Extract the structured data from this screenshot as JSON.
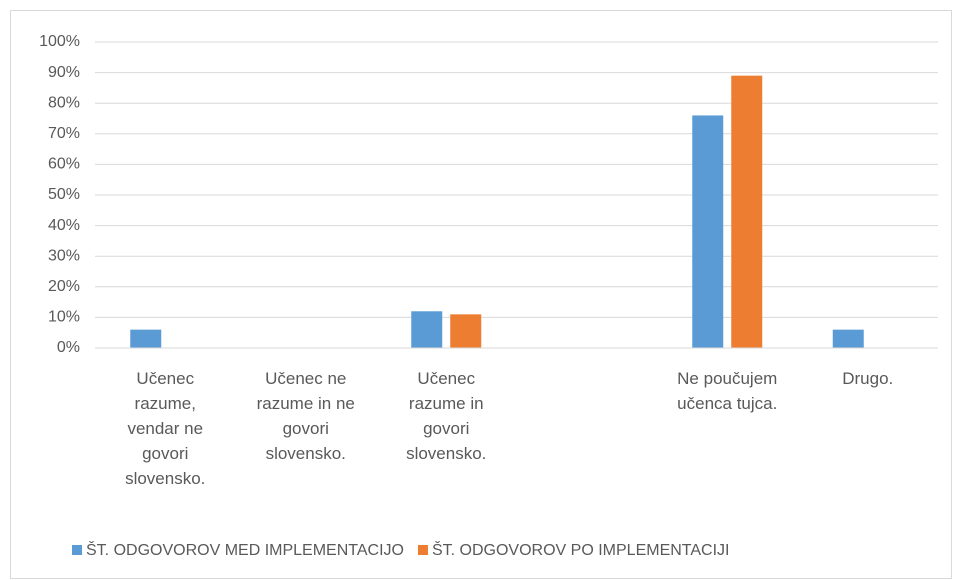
{
  "chart_data": {
    "type": "bar",
    "categories": [
      "Učenec razume, vendar ne govori slovensko.",
      "Učenec ne razume in ne govori slovensko.",
      "Učenec razume in govori slovensko.",
      null,
      "Ne poučujem učenca tujca.",
      "Drugo."
    ],
    "series": [
      {
        "name": "ŠT. ODGOVOROV MED IMPLEMENTACIJO",
        "color": "#5b9bd5",
        "values": [
          6,
          0,
          12,
          0,
          76,
          6
        ]
      },
      {
        "name": "ŠT. ODGOVOROV PO IMPLEMENTACIJI",
        "color": "#ed7d31",
        "values": [
          0,
          0,
          11,
          0,
          89,
          0
        ]
      }
    ],
    "ylim": [
      0,
      100
    ],
    "yticks": [
      {
        "value": 0,
        "label": "0%"
      },
      {
        "value": 10,
        "label": "10%"
      },
      {
        "value": 20,
        "label": "20%"
      },
      {
        "value": 30,
        "label": "30%"
      },
      {
        "value": 40,
        "label": "40%"
      },
      {
        "value": 50,
        "label": "50%"
      },
      {
        "value": 60,
        "label": "60%"
      },
      {
        "value": 70,
        "label": "70%"
      },
      {
        "value": 80,
        "label": "80%"
      },
      {
        "value": 90,
        "label": "90%"
      },
      {
        "value": 100,
        "label": "100%"
      }
    ],
    "grid": true,
    "legend": "bottom"
  }
}
